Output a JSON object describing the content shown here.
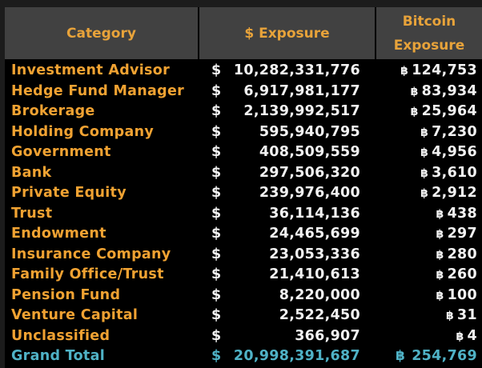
{
  "headers": {
    "category": "Category",
    "usd": "$ Exposure",
    "btc_line1": "Bitcoin",
    "btc_line2": "Exposure"
  },
  "currency_symbol": "$",
  "btc_symbol": "฿",
  "rows": [
    {
      "category": "Investment Advisor",
      "usd": "10,282,331,776",
      "btc": "124,753"
    },
    {
      "category": "Hedge Fund Manager",
      "usd": "6,917,981,177",
      "btc": "83,934"
    },
    {
      "category": "Brokerage",
      "usd": "2,139,992,517",
      "btc": "25,964"
    },
    {
      "category": "Holding Company",
      "usd": "595,940,795",
      "btc": "7,230"
    },
    {
      "category": "Government",
      "usd": "408,509,559",
      "btc": "4,956"
    },
    {
      "category": "Bank",
      "usd": "297,506,320",
      "btc": "3,610"
    },
    {
      "category": "Private Equity",
      "usd": "239,976,400",
      "btc": "2,912"
    },
    {
      "category": "Trust",
      "usd": "36,114,136",
      "btc": "438"
    },
    {
      "category": "Endowment",
      "usd": "24,465,699",
      "btc": "297"
    },
    {
      "category": "Insurance Company",
      "usd": "23,053,336",
      "btc": "280"
    },
    {
      "category": "Family Office/Trust",
      "usd": "21,410,613",
      "btc": "260"
    },
    {
      "category": "Pension Fund",
      "usd": "8,220,000",
      "btc": "100"
    },
    {
      "category": "Venture Capital",
      "usd": "2,522,450",
      "btc": "31"
    },
    {
      "category": "Unclassified",
      "usd": "366,907",
      "btc": "4"
    }
  ],
  "total": {
    "category": "Grand Total",
    "usd": "20,998,391,687",
    "btc": "254,769"
  },
  "colors": {
    "header_bg": "#414141",
    "header_text": "#e8a33a",
    "category_text": "#f0a232",
    "value_text": "#f2f2f2",
    "total_text": "#4fb2c6"
  }
}
